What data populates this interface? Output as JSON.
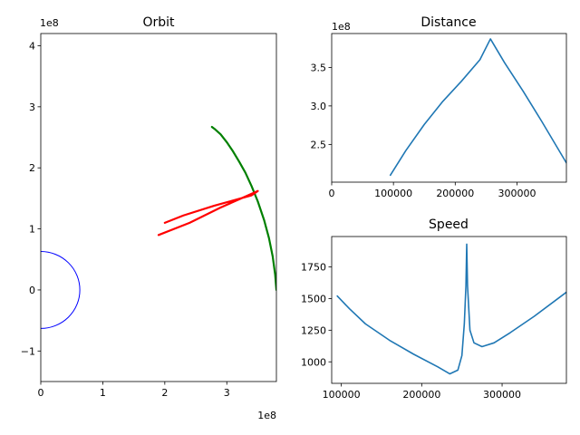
{
  "chart_data": [
    {
      "id": "orbit",
      "type": "line",
      "title": "Orbit",
      "xlabel": "",
      "ylabel": "",
      "x_offset_label": "1e8",
      "y_offset_label": "1e8",
      "xlim": [
        0,
        3.8
      ],
      "ylim": [
        -1.5,
        4.2
      ],
      "xticks": [
        0,
        1,
        2,
        3
      ],
      "xtick_labels": [
        "0",
        "1",
        "2",
        "3"
      ],
      "yticks": [
        -1,
        0,
        1,
        2,
        3,
        4
      ],
      "ytick_labels": [
        "−1",
        "0",
        "1",
        "2",
        "3",
        "4"
      ],
      "circle": {
        "cx": 0,
        "cy": 0,
        "r": 0.63,
        "color": "#0000ff"
      },
      "series": [
        {
          "color": "#008000",
          "x": [
            3.8,
            3.78,
            3.74,
            3.68,
            3.6,
            3.5,
            3.4,
            3.3,
            3.2,
            3.1,
            3.0,
            2.9,
            2.8,
            2.76
          ],
          "y": [
            0.0,
            0.25,
            0.55,
            0.85,
            1.15,
            1.45,
            1.7,
            1.92,
            2.1,
            2.27,
            2.42,
            2.55,
            2.64,
            2.67
          ]
        },
        {
          "color": "#ff0000",
          "x": [
            1.9,
            2.4,
            2.9,
            3.5,
            3.4,
            2.8,
            2.3,
            2.0
          ],
          "y": [
            0.9,
            1.1,
            1.35,
            1.62,
            1.55,
            1.38,
            1.22,
            1.1
          ]
        }
      ]
    },
    {
      "id": "distance",
      "type": "line",
      "title": "Distance",
      "xlabel": "",
      "ylabel": "",
      "y_offset_label": "1e8",
      "xlim": [
        0,
        380000
      ],
      "ylim": [
        2.01,
        3.94
      ],
      "xticks": [
        0,
        100000,
        200000,
        300000
      ],
      "xtick_labels": [
        "0",
        "100000",
        "200000",
        "300000"
      ],
      "yticks": [
        2.5,
        3.0,
        3.5
      ],
      "ytick_labels": [
        "2.5",
        "3.0",
        "3.5"
      ],
      "series": [
        {
          "color": "#1f77b4",
          "x": [
            95000,
            120000,
            150000,
            180000,
            210000,
            240000,
            257000,
            280000,
            310000,
            340000,
            380000
          ],
          "y": [
            2.1,
            2.42,
            2.76,
            3.06,
            3.32,
            3.6,
            3.87,
            3.56,
            3.19,
            2.8,
            2.26
          ]
        }
      ]
    },
    {
      "id": "speed",
      "type": "line",
      "title": "Speed",
      "xlabel": "",
      "ylabel": "",
      "xlim": [
        88000,
        380000
      ],
      "ylim": [
        830,
        1990
      ],
      "xticks": [
        100000,
        200000,
        300000
      ],
      "xtick_labels": [
        "100000",
        "200000",
        "300000"
      ],
      "yticks": [
        1000,
        1250,
        1500,
        1750
      ],
      "ytick_labels": [
        "1000",
        "1250",
        "1500",
        "1750"
      ],
      "series": [
        {
          "color": "#1f77b4",
          "x": [
            95000,
            110000,
            130000,
            160000,
            190000,
            220000,
            235000,
            245000,
            250000,
            253000,
            255000,
            256000,
            257000,
            260000,
            265000,
            275000,
            290000,
            310000,
            340000,
            380000
          ],
          "y": [
            1520,
            1420,
            1300,
            1170,
            1060,
            960,
            905,
            935,
            1050,
            1300,
            1600,
            1930,
            1600,
            1250,
            1150,
            1120,
            1150,
            1230,
            1360,
            1550
          ]
        }
      ]
    }
  ]
}
